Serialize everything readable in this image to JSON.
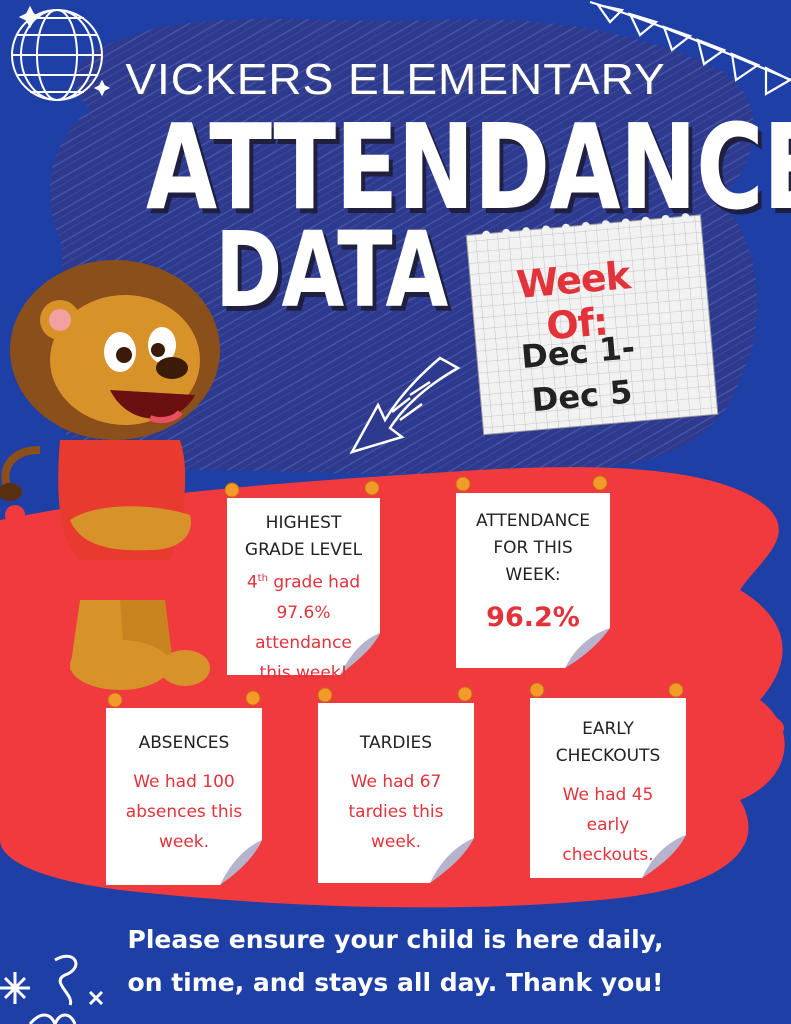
{
  "school_name": "VICKERS ELEMENTARY",
  "title_line1": "ATTENDANCE",
  "title_line2": "DATA",
  "week": {
    "label": "Week Of:",
    "dates_line1": "Dec 1-",
    "dates_line2": "Dec 5"
  },
  "cards": {
    "highest_grade": {
      "heading_line1": "HIGHEST",
      "heading_line2": "GRADE LEVEL",
      "grade_num": "4",
      "grade_sup": "th",
      "body_line1_rest": " grade had",
      "body_line2": "97.6%",
      "body_line3": "attendance",
      "body_line4": "this week!"
    },
    "attendance": {
      "heading_line1": "ATTENDANCE",
      "heading_line2": "FOR THIS",
      "heading_line3": "WEEK:",
      "value": "96.2%"
    },
    "absences": {
      "heading": "ABSENCES",
      "body_line1": "We had 100",
      "body_line2": "absences this",
      "body_line3": "week."
    },
    "tardies": {
      "heading": "TARDIES",
      "body_line1": "We had 67",
      "body_line2": "tardies this",
      "body_line3": "week."
    },
    "early_checkouts": {
      "heading_line1": "EARLY",
      "heading_line2": "CHECKOUTS",
      "body_line1": "We had 45",
      "body_line2": "early",
      "body_line3": "checkouts."
    }
  },
  "footer": {
    "line1": "Please ensure your child is here daily,",
    "line2": "on time, and stays all day. Thank you!"
  },
  "icons": {
    "disco_ball": "disco-ball-icon",
    "bunting": "bunting-icon",
    "arrow": "curved-arrow-icon",
    "mascot": "lion-mascot-illustration",
    "pushpin": "pushpin-icon",
    "doodle": "squiggle-doodle-icon"
  },
  "colors": {
    "background_blue": "#1d3fa6",
    "scribble_blue": "#2d3a8e",
    "splash_red": "#f03a3e",
    "accent_red": "#e3333a",
    "pin_orange": "#f39a2a"
  }
}
